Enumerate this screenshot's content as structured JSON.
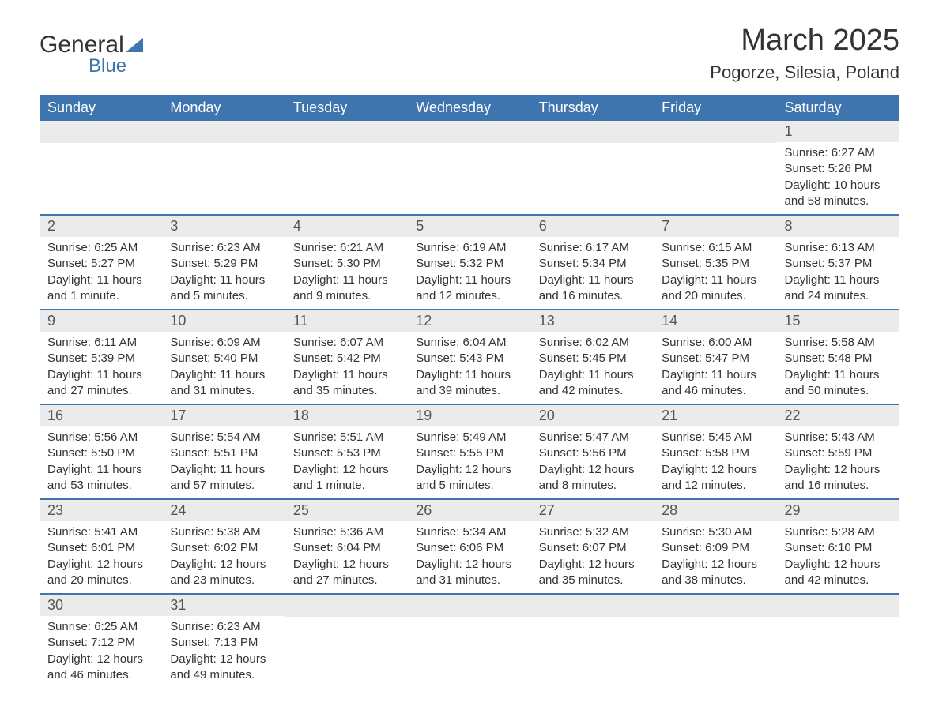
{
  "logo": {
    "text_general": "General",
    "text_blue": "Blue"
  },
  "header": {
    "title": "March 2025",
    "location": "Pogorze, Silesia, Poland"
  },
  "colors": {
    "header_bg": "#3f75af",
    "header_text": "#ffffff",
    "day_header_bg": "#ebebeb",
    "row_border": "#3f75af",
    "text": "#333333"
  },
  "calendar": {
    "weekdays": [
      "Sunday",
      "Monday",
      "Tuesday",
      "Wednesday",
      "Thursday",
      "Friday",
      "Saturday"
    ],
    "weeks": [
      [
        {
          "empty": true
        },
        {
          "empty": true
        },
        {
          "empty": true
        },
        {
          "empty": true
        },
        {
          "empty": true
        },
        {
          "empty": true
        },
        {
          "day": "1",
          "sunrise": "Sunrise: 6:27 AM",
          "sunset": "Sunset: 5:26 PM",
          "daylight1": "Daylight: 10 hours",
          "daylight2": "and 58 minutes."
        }
      ],
      [
        {
          "day": "2",
          "sunrise": "Sunrise: 6:25 AM",
          "sunset": "Sunset: 5:27 PM",
          "daylight1": "Daylight: 11 hours",
          "daylight2": "and 1 minute."
        },
        {
          "day": "3",
          "sunrise": "Sunrise: 6:23 AM",
          "sunset": "Sunset: 5:29 PM",
          "daylight1": "Daylight: 11 hours",
          "daylight2": "and 5 minutes."
        },
        {
          "day": "4",
          "sunrise": "Sunrise: 6:21 AM",
          "sunset": "Sunset: 5:30 PM",
          "daylight1": "Daylight: 11 hours",
          "daylight2": "and 9 minutes."
        },
        {
          "day": "5",
          "sunrise": "Sunrise: 6:19 AM",
          "sunset": "Sunset: 5:32 PM",
          "daylight1": "Daylight: 11 hours",
          "daylight2": "and 12 minutes."
        },
        {
          "day": "6",
          "sunrise": "Sunrise: 6:17 AM",
          "sunset": "Sunset: 5:34 PM",
          "daylight1": "Daylight: 11 hours",
          "daylight2": "and 16 minutes."
        },
        {
          "day": "7",
          "sunrise": "Sunrise: 6:15 AM",
          "sunset": "Sunset: 5:35 PM",
          "daylight1": "Daylight: 11 hours",
          "daylight2": "and 20 minutes."
        },
        {
          "day": "8",
          "sunrise": "Sunrise: 6:13 AM",
          "sunset": "Sunset: 5:37 PM",
          "daylight1": "Daylight: 11 hours",
          "daylight2": "and 24 minutes."
        }
      ],
      [
        {
          "day": "9",
          "sunrise": "Sunrise: 6:11 AM",
          "sunset": "Sunset: 5:39 PM",
          "daylight1": "Daylight: 11 hours",
          "daylight2": "and 27 minutes."
        },
        {
          "day": "10",
          "sunrise": "Sunrise: 6:09 AM",
          "sunset": "Sunset: 5:40 PM",
          "daylight1": "Daylight: 11 hours",
          "daylight2": "and 31 minutes."
        },
        {
          "day": "11",
          "sunrise": "Sunrise: 6:07 AM",
          "sunset": "Sunset: 5:42 PM",
          "daylight1": "Daylight: 11 hours",
          "daylight2": "and 35 minutes."
        },
        {
          "day": "12",
          "sunrise": "Sunrise: 6:04 AM",
          "sunset": "Sunset: 5:43 PM",
          "daylight1": "Daylight: 11 hours",
          "daylight2": "and 39 minutes."
        },
        {
          "day": "13",
          "sunrise": "Sunrise: 6:02 AM",
          "sunset": "Sunset: 5:45 PM",
          "daylight1": "Daylight: 11 hours",
          "daylight2": "and 42 minutes."
        },
        {
          "day": "14",
          "sunrise": "Sunrise: 6:00 AM",
          "sunset": "Sunset: 5:47 PM",
          "daylight1": "Daylight: 11 hours",
          "daylight2": "and 46 minutes."
        },
        {
          "day": "15",
          "sunrise": "Sunrise: 5:58 AM",
          "sunset": "Sunset: 5:48 PM",
          "daylight1": "Daylight: 11 hours",
          "daylight2": "and 50 minutes."
        }
      ],
      [
        {
          "day": "16",
          "sunrise": "Sunrise: 5:56 AM",
          "sunset": "Sunset: 5:50 PM",
          "daylight1": "Daylight: 11 hours",
          "daylight2": "and 53 minutes."
        },
        {
          "day": "17",
          "sunrise": "Sunrise: 5:54 AM",
          "sunset": "Sunset: 5:51 PM",
          "daylight1": "Daylight: 11 hours",
          "daylight2": "and 57 minutes."
        },
        {
          "day": "18",
          "sunrise": "Sunrise: 5:51 AM",
          "sunset": "Sunset: 5:53 PM",
          "daylight1": "Daylight: 12 hours",
          "daylight2": "and 1 minute."
        },
        {
          "day": "19",
          "sunrise": "Sunrise: 5:49 AM",
          "sunset": "Sunset: 5:55 PM",
          "daylight1": "Daylight: 12 hours",
          "daylight2": "and 5 minutes."
        },
        {
          "day": "20",
          "sunrise": "Sunrise: 5:47 AM",
          "sunset": "Sunset: 5:56 PM",
          "daylight1": "Daylight: 12 hours",
          "daylight2": "and 8 minutes."
        },
        {
          "day": "21",
          "sunrise": "Sunrise: 5:45 AM",
          "sunset": "Sunset: 5:58 PM",
          "daylight1": "Daylight: 12 hours",
          "daylight2": "and 12 minutes."
        },
        {
          "day": "22",
          "sunrise": "Sunrise: 5:43 AM",
          "sunset": "Sunset: 5:59 PM",
          "daylight1": "Daylight: 12 hours",
          "daylight2": "and 16 minutes."
        }
      ],
      [
        {
          "day": "23",
          "sunrise": "Sunrise: 5:41 AM",
          "sunset": "Sunset: 6:01 PM",
          "daylight1": "Daylight: 12 hours",
          "daylight2": "and 20 minutes."
        },
        {
          "day": "24",
          "sunrise": "Sunrise: 5:38 AM",
          "sunset": "Sunset: 6:02 PM",
          "daylight1": "Daylight: 12 hours",
          "daylight2": "and 23 minutes."
        },
        {
          "day": "25",
          "sunrise": "Sunrise: 5:36 AM",
          "sunset": "Sunset: 6:04 PM",
          "daylight1": "Daylight: 12 hours",
          "daylight2": "and 27 minutes."
        },
        {
          "day": "26",
          "sunrise": "Sunrise: 5:34 AM",
          "sunset": "Sunset: 6:06 PM",
          "daylight1": "Daylight: 12 hours",
          "daylight2": "and 31 minutes."
        },
        {
          "day": "27",
          "sunrise": "Sunrise: 5:32 AM",
          "sunset": "Sunset: 6:07 PM",
          "daylight1": "Daylight: 12 hours",
          "daylight2": "and 35 minutes."
        },
        {
          "day": "28",
          "sunrise": "Sunrise: 5:30 AM",
          "sunset": "Sunset: 6:09 PM",
          "daylight1": "Daylight: 12 hours",
          "daylight2": "and 38 minutes."
        },
        {
          "day": "29",
          "sunrise": "Sunrise: 5:28 AM",
          "sunset": "Sunset: 6:10 PM",
          "daylight1": "Daylight: 12 hours",
          "daylight2": "and 42 minutes."
        }
      ],
      [
        {
          "day": "30",
          "sunrise": "Sunrise: 6:25 AM",
          "sunset": "Sunset: 7:12 PM",
          "daylight1": "Daylight: 12 hours",
          "daylight2": "and 46 minutes."
        },
        {
          "day": "31",
          "sunrise": "Sunrise: 6:23 AM",
          "sunset": "Sunset: 7:13 PM",
          "daylight1": "Daylight: 12 hours",
          "daylight2": "and 49 minutes."
        },
        {
          "empty": true,
          "trailing": true
        },
        {
          "empty": true,
          "trailing": true
        },
        {
          "empty": true,
          "trailing": true
        },
        {
          "empty": true,
          "trailing": true
        },
        {
          "empty": true,
          "trailing": true
        }
      ]
    ]
  }
}
